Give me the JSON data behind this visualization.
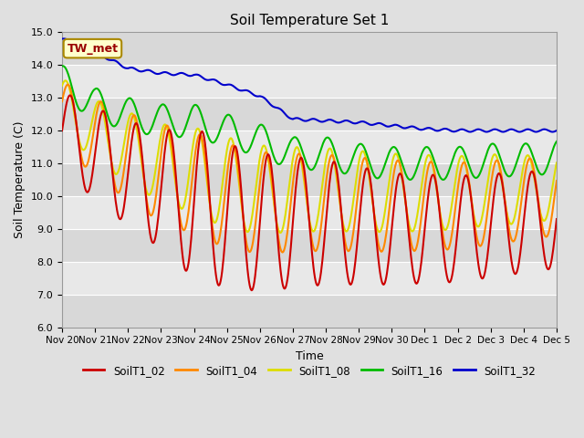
{
  "title": "Soil Temperature Set 1",
  "xlabel": "Time",
  "ylabel": "Soil Temperature (C)",
  "ylim": [
    6.0,
    15.0
  ],
  "yticks": [
    6.0,
    7.0,
    8.0,
    9.0,
    10.0,
    11.0,
    12.0,
    13.0,
    14.0,
    15.0
  ],
  "series_colors": {
    "SoilT1_02": "#cc0000",
    "SoilT1_04": "#ff8800",
    "SoilT1_08": "#dddd00",
    "SoilT1_16": "#00bb00",
    "SoilT1_32": "#0000cc"
  },
  "annotation_label": "TW_met",
  "annotation_color": "#990000",
  "annotation_bg": "#ffffcc",
  "annotation_border": "#aa8800",
  "line_width": 1.5,
  "tick_labels": [
    "Nov 20",
    "Nov 21",
    "Nov 22",
    "Nov 23",
    "Nov 24",
    "Nov 25",
    "Nov 26",
    "Nov 27",
    "Nov 28",
    "Nov 29",
    "Nov 30",
    "Dec 1",
    "Dec 2",
    "Dec 3",
    "Dec 4",
    "Dec 5"
  ],
  "band_colors": [
    "#d8d8d8",
    "#e8e8e8"
  ],
  "bg_color": "#e0e0e0",
  "grid_line_color": "#ffffff"
}
